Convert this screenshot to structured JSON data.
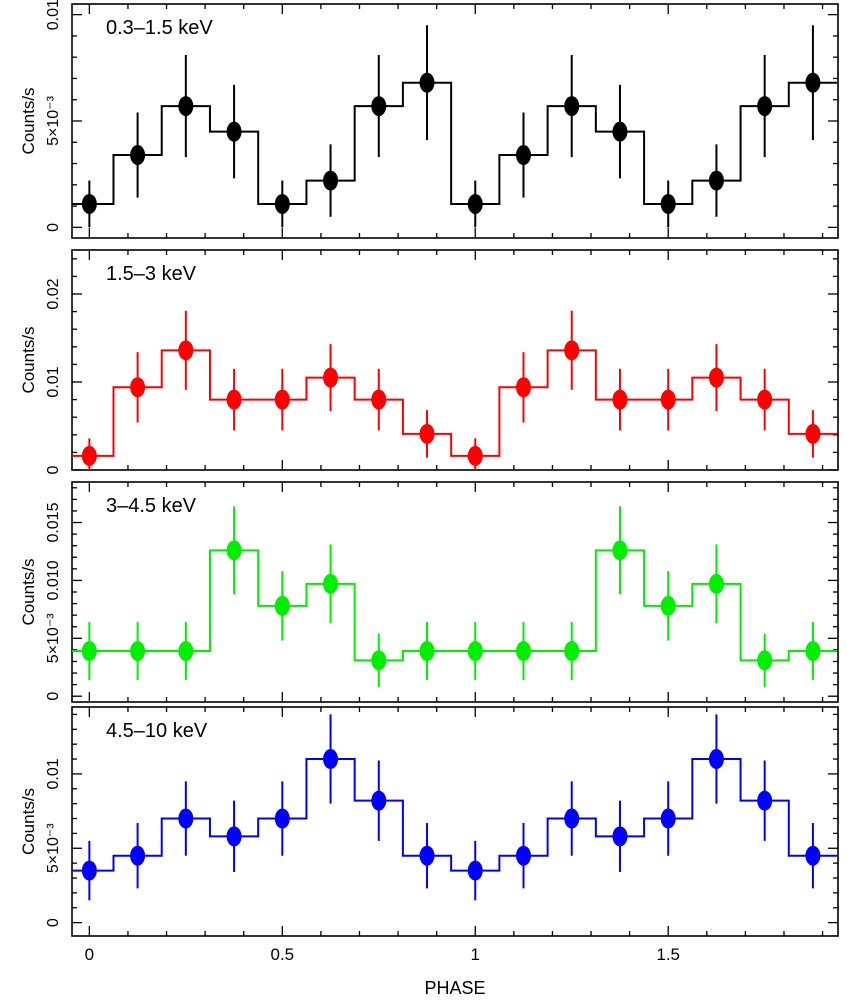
{
  "chart_data": [
    {
      "type": "step",
      "panel_label": "0.3–1.5 keV",
      "ylabel": "Counts/s",
      "ylim": [
        -0.0005,
        0.0105
      ],
      "yticks": [
        {
          "value": 0,
          "label": "0"
        },
        {
          "value": 0.005,
          "label": "5×10⁻³"
        },
        {
          "value": 0.01,
          "label": "0.01"
        }
      ],
      "color": "#000000",
      "x": [
        0,
        0.125,
        0.25,
        0.375,
        0.5,
        0.625,
        0.75,
        0.875,
        1.0,
        1.125,
        1.25,
        1.375,
        1.5,
        1.625,
        1.75,
        1.875
      ],
      "values": [
        0.0011,
        0.0034,
        0.0057,
        0.0045,
        0.0011,
        0.0022,
        0.0057,
        0.0068,
        0.0011,
        0.0034,
        0.0057,
        0.0045,
        0.0011,
        0.0022,
        0.0057,
        0.0068
      ],
      "errors": [
        0.0011,
        0.002,
        0.0024,
        0.0022,
        0.0011,
        0.0017,
        0.0024,
        0.0027,
        0.0011,
        0.002,
        0.0024,
        0.0022,
        0.0011,
        0.0017,
        0.0024,
        0.0027
      ]
    },
    {
      "type": "step",
      "panel_label": "1.5–3 keV",
      "ylabel": "Counts/s",
      "ylim": [
        0,
        0.025
      ],
      "yticks": [
        {
          "value": 0,
          "label": "0"
        },
        {
          "value": 0.01,
          "label": "0.01"
        },
        {
          "value": 0.02,
          "label": "0.02"
        }
      ],
      "color": "#ff0000",
      "x": [
        0,
        0.125,
        0.25,
        0.375,
        0.5,
        0.625,
        0.75,
        0.875,
        1.0,
        1.125,
        1.25,
        1.375,
        1.5,
        1.625,
        1.75,
        1.875
      ],
      "values": [
        0.0016,
        0.0094,
        0.0136,
        0.008,
        0.008,
        0.0105,
        0.008,
        0.0041,
        0.0016,
        0.0094,
        0.0136,
        0.008,
        0.008,
        0.0105,
        0.008,
        0.0041
      ],
      "errors": [
        0.002,
        0.004,
        0.0045,
        0.0035,
        0.0035,
        0.0038,
        0.0035,
        0.0027,
        0.002,
        0.004,
        0.0045,
        0.0035,
        0.0035,
        0.0038,
        0.0035,
        0.0027
      ]
    },
    {
      "type": "step",
      "panel_label": "3–4.5 keV",
      "ylabel": "Counts/s",
      "ylim": [
        -0.0005,
        0.0185
      ],
      "yticks": [
        {
          "value": 0,
          "label": "0"
        },
        {
          "value": 0.005,
          "label": "5×10⁻³"
        },
        {
          "value": 0.01,
          "label": "0.010"
        },
        {
          "value": 0.015,
          "label": "0.015"
        }
      ],
      "color": "#00ee00",
      "x": [
        0,
        0.125,
        0.25,
        0.375,
        0.5,
        0.625,
        0.75,
        0.875,
        1.0,
        1.125,
        1.25,
        1.375,
        1.5,
        1.625,
        1.75,
        1.875
      ],
      "values": [
        0.0039,
        0.0039,
        0.0039,
        0.0126,
        0.0078,
        0.0097,
        0.0031,
        0.0039,
        0.0039,
        0.0039,
        0.0039,
        0.0126,
        0.0078,
        0.0097,
        0.0031,
        0.0039
      ],
      "errors": [
        0.0025,
        0.0025,
        0.0025,
        0.0038,
        0.003,
        0.0034,
        0.0023,
        0.0025,
        0.0025,
        0.0025,
        0.0025,
        0.0038,
        0.003,
        0.0034,
        0.0023,
        0.0025
      ]
    },
    {
      "type": "step",
      "panel_label": "4.5–10 keV",
      "ylabel": "Counts/s",
      "ylim": [
        -0.0009,
        0.0145
      ],
      "yticks": [
        {
          "value": 0,
          "label": "0"
        },
        {
          "value": 0.005,
          "label": "5×10⁻³"
        },
        {
          "value": 0.01,
          "label": "0.01"
        }
      ],
      "color": "#0000ff",
      "x": [
        0,
        0.125,
        0.25,
        0.375,
        0.5,
        0.625,
        0.75,
        0.875,
        1.0,
        1.125,
        1.25,
        1.375,
        1.5,
        1.625,
        1.75,
        1.875
      ],
      "values": [
        0.0035,
        0.0045,
        0.007,
        0.0058,
        0.007,
        0.011,
        0.0082,
        0.0045,
        0.0035,
        0.0045,
        0.007,
        0.0058,
        0.007,
        0.011,
        0.0082,
        0.0045
      ],
      "errors": [
        0.002,
        0.0022,
        0.0025,
        0.0024,
        0.0025,
        0.003,
        0.0027,
        0.0022,
        0.002,
        0.0022,
        0.0025,
        0.0024,
        0.0025,
        0.003,
        0.0027,
        0.0022
      ]
    }
  ],
  "x_axis": {
    "label": "PHASE",
    "xlim": [
      -0.045,
      1.94
    ],
    "ticks": [
      {
        "value": 0,
        "label": "0"
      },
      {
        "value": 0.5,
        "label": "0.5"
      },
      {
        "value": 1,
        "label": "1"
      },
      {
        "value": 1.5,
        "label": "1.5"
      }
    ],
    "bin_width": 0.125
  }
}
